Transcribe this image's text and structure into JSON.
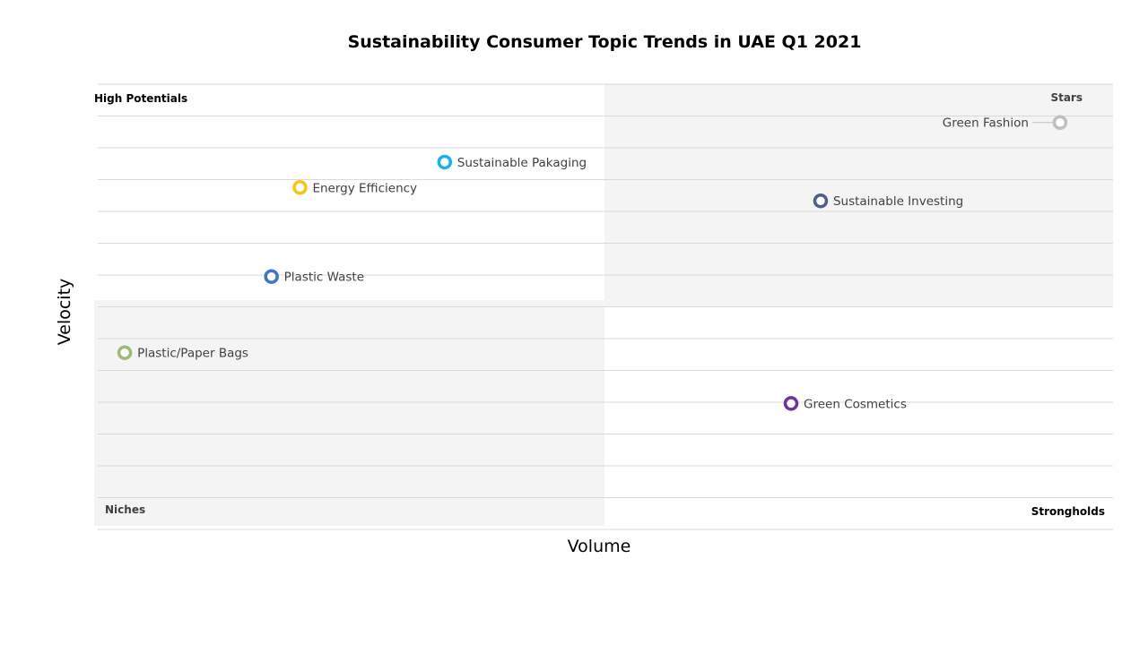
{
  "chart_data": {
    "type": "scatter",
    "title": "Sustainability Consumer Topic Trends in UAE Q1 2021",
    "xlabel": "Volume",
    "ylabel": "Velocity",
    "xlim": [
      0,
      100
    ],
    "ylim": [
      0,
      100
    ],
    "grid": true,
    "quadrants": {
      "top_left": "High Potentials",
      "top_right": "Stars",
      "bottom_left": "Niches",
      "bottom_right": "Strongholds"
    },
    "points": [
      {
        "name": "Green Fashion",
        "x": 94.8,
        "y": 91.4,
        "color": "#bfbfbf",
        "label_side": "left",
        "label_color": "#808080"
      },
      {
        "name": "Sustainable Pakaging",
        "x": 34.4,
        "y": 82.5,
        "color": "#1ab0e8",
        "label_side": "right",
        "label_color": "#404040"
      },
      {
        "name": "Energy Efficiency",
        "x": 20.2,
        "y": 76.8,
        "color": "#f5c518",
        "label_side": "right",
        "label_color": "#404040"
      },
      {
        "name": "Sustainable Investing",
        "x": 71.3,
        "y": 73.8,
        "color": "#4f5f86",
        "label_side": "right",
        "label_color": "#707070"
      },
      {
        "name": "Plastic Waste",
        "x": 17.4,
        "y": 56.8,
        "color": "#4472c4",
        "label_side": "right",
        "label_color": "#404040"
      },
      {
        "name": "Plastic/Paper Bags",
        "x": 3.0,
        "y": 39.7,
        "color": "#9bbb7b",
        "label_side": "right",
        "label_color": "#707070"
      },
      {
        "name": "Green Cosmetics",
        "x": 68.4,
        "y": 28.3,
        "color": "#7030a0",
        "label_side": "right",
        "label_color": "#404040"
      }
    ]
  }
}
